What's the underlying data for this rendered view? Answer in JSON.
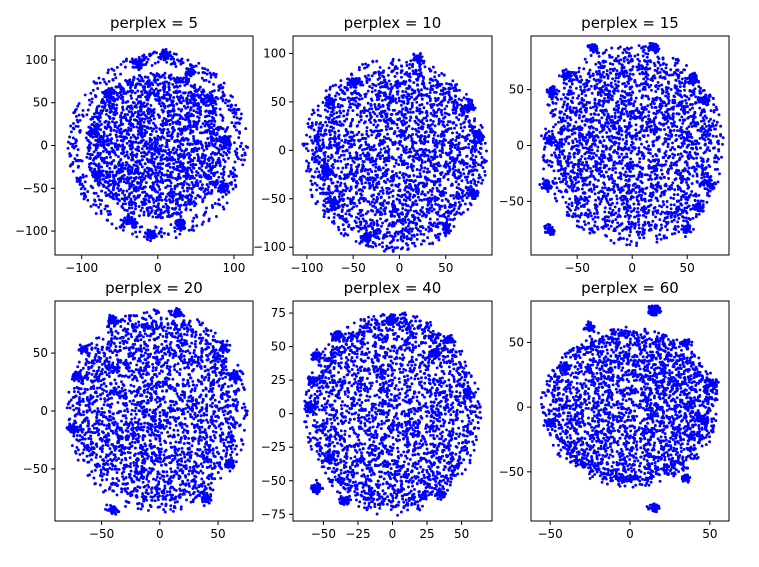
{
  "figure": {
    "background": "#ffffff",
    "point_color": "#0000ff",
    "layout": "2x3 grid of scatter subplots"
  },
  "chart_data": [
    {
      "type": "scatter",
      "title": "perplex = 5",
      "xlim": [
        -135,
        125
      ],
      "ylim": [
        -128,
        128
      ],
      "xticks": [
        -100,
        0,
        100
      ],
      "xtick_labels": [
        "−100",
        "0",
        "100"
      ],
      "yticks": [
        -100,
        -50,
        0,
        50,
        100
      ],
      "ytick_labels": [
        "−100",
        "−50",
        "0",
        "50",
        "100"
      ],
      "grid": false,
      "legend": "none",
      "cloud": {
        "center": [
          0,
          0
        ],
        "rx": 95,
        "ry": 85,
        "rx_out": 118,
        "ry_out": 110
      },
      "clusters": [
        {
          "x": 10,
          "y": 105
        },
        {
          "x": -25,
          "y": 95
        },
        {
          "x": 42,
          "y": 85
        },
        {
          "x": -65,
          "y": 62
        },
        {
          "x": 70,
          "y": 55
        },
        {
          "x": -85,
          "y": 15
        },
        {
          "x": 90,
          "y": 5
        },
        {
          "x": -80,
          "y": -35
        },
        {
          "x": 85,
          "y": -48
        },
        {
          "x": -35,
          "y": -88
        },
        {
          "x": 30,
          "y": -92
        },
        {
          "x": -10,
          "y": -104
        }
      ]
    },
    {
      "type": "scatter",
      "title": "perplex = 10",
      "xlim": [
        -115,
        100
      ],
      "ylim": [
        -108,
        118
      ],
      "xticks": [
        -100,
        -50,
        0,
        50
      ],
      "xtick_labels": [
        "−100",
        "−50",
        "0",
        "50"
      ],
      "yticks": [
        -100,
        -50,
        0,
        50,
        100
      ],
      "ytick_labels": [
        "−100",
        "−50",
        "0",
        "50",
        "100"
      ],
      "grid": false,
      "legend": "none",
      "cloud": {
        "center": [
          -5,
          -5
        ],
        "rx": 88,
        "ry": 88,
        "rx_out": 100,
        "ry_out": 100
      },
      "clusters": [
        {
          "x": -75,
          "y": 50
        },
        {
          "x": 75,
          "y": 45
        },
        {
          "x": 85,
          "y": 15
        },
        {
          "x": -80,
          "y": -20
        },
        {
          "x": -35,
          "y": -90
        },
        {
          "x": 50,
          "y": -80
        },
        {
          "x": 20,
          "y": 95
        },
        {
          "x": -50,
          "y": 70
        },
        {
          "x": -70,
          "y": -55
        },
        {
          "x": 80,
          "y": -45
        }
      ]
    },
    {
      "type": "scatter",
      "title": "perplex = 15",
      "xlim": [
        -92,
        88
      ],
      "ylim": [
        -98,
        98
      ],
      "xticks": [
        -50,
        0,
        50
      ],
      "xtick_labels": [
        "−50",
        "0",
        "50"
      ],
      "yticks": [
        -50,
        0,
        50
      ],
      "ytick_labels": [
        "−50",
        "0",
        "50"
      ],
      "grid": false,
      "legend": "none",
      "cloud": {
        "center": [
          0,
          0
        ],
        "rx": 72,
        "ry": 78,
        "rx_out": 84,
        "ry_out": 90
      },
      "clusters": [
        {
          "x": -35,
          "y": 87
        },
        {
          "x": 20,
          "y": 88
        },
        {
          "x": -60,
          "y": 63
        },
        {
          "x": -72,
          "y": 48
        },
        {
          "x": 65,
          "y": 40
        },
        {
          "x": 70,
          "y": -35
        },
        {
          "x": -78,
          "y": -35
        },
        {
          "x": -75,
          "y": 5
        },
        {
          "x": -75,
          "y": -75
        },
        {
          "x": 50,
          "y": -75
        },
        {
          "x": 55,
          "y": 60
        },
        {
          "x": 60,
          "y": -55
        }
      ]
    },
    {
      "type": "scatter",
      "title": "perplex = 20",
      "xlim": [
        -90,
        80
      ],
      "ylim": [
        -95,
        95
      ],
      "xticks": [
        -50,
        0,
        50
      ],
      "xtick_labels": [
        "−50",
        "0",
        "50"
      ],
      "yticks": [
        -50,
        0,
        50
      ],
      "ytick_labels": [
        "−50",
        "0",
        "50"
      ],
      "grid": false,
      "legend": "none",
      "cloud": {
        "center": [
          -2,
          0
        ],
        "rx": 68,
        "ry": 78,
        "rx_out": 78,
        "ry_out": 88
      },
      "clusters": [
        {
          "x": -40,
          "y": 78
        },
        {
          "x": -65,
          "y": 53
        },
        {
          "x": 65,
          "y": 30
        },
        {
          "x": 60,
          "y": -45
        },
        {
          "x": -40,
          "y": -85
        },
        {
          "x": 40,
          "y": -75
        },
        {
          "x": -75,
          "y": -15
        },
        {
          "x": 55,
          "y": 55
        },
        {
          "x": 15,
          "y": 85
        },
        {
          "x": -70,
          "y": 30
        }
      ]
    },
    {
      "type": "scatter",
      "title": "perplex = 40",
      "xlim": [
        -72,
        72
      ],
      "ylim": [
        -80,
        84
      ],
      "xticks": [
        -50,
        -25,
        0,
        25,
        50
      ],
      "xtick_labels": [
        "−50",
        "−25",
        "0",
        "25",
        "50"
      ],
      "yticks": [
        -75,
        -50,
        -25,
        0,
        25,
        50,
        75
      ],
      "ytick_labels": [
        "−75",
        "−50",
        "−25",
        "0",
        "25",
        "50",
        "75"
      ],
      "grid": false,
      "legend": "none",
      "cloud": {
        "center": [
          0,
          0
        ],
        "rx": 58,
        "ry": 70,
        "rx_out": 64,
        "ry_out": 76
      },
      "clusters": [
        {
          "x": -40,
          "y": 58
        },
        {
          "x": -55,
          "y": 43
        },
        {
          "x": -58,
          "y": 25
        },
        {
          "x": -60,
          "y": 5
        },
        {
          "x": -55,
          "y": -55
        },
        {
          "x": -35,
          "y": -65
        },
        {
          "x": 35,
          "y": -60
        },
        {
          "x": 55,
          "y": 15
        },
        {
          "x": 40,
          "y": 55
        },
        {
          "x": 0,
          "y": 70
        },
        {
          "x": -45,
          "y": -32
        },
        {
          "x": 30,
          "y": 45
        }
      ]
    },
    {
      "type": "scatter",
      "title": "perplex = 60",
      "xlim": [
        -62,
        62
      ],
      "ylim": [
        -88,
        82
      ],
      "xticks": [
        -50,
        0,
        50
      ],
      "xtick_labels": [
        "−50",
        "0",
        "50"
      ],
      "yticks": [
        -50,
        0,
        50
      ],
      "ytick_labels": [
        "−50",
        "0",
        "50"
      ],
      "grid": false,
      "legend": "none",
      "cloud": {
        "center": [
          0,
          0
        ],
        "rx": 50,
        "ry": 58,
        "rx_out": 56,
        "ry_out": 62
      },
      "clusters": [
        {
          "x": -25,
          "y": 62
        },
        {
          "x": 15,
          "y": 73
        },
        {
          "x": 15,
          "y": 76
        },
        {
          "x": -50,
          "y": -12
        },
        {
          "x": 35,
          "y": 50
        },
        {
          "x": 45,
          "y": -10
        },
        {
          "x": 52,
          "y": 18
        },
        {
          "x": 15,
          "y": -78
        },
        {
          "x": 35,
          "y": -55
        },
        {
          "x": -40,
          "y": 30
        }
      ]
    }
  ]
}
